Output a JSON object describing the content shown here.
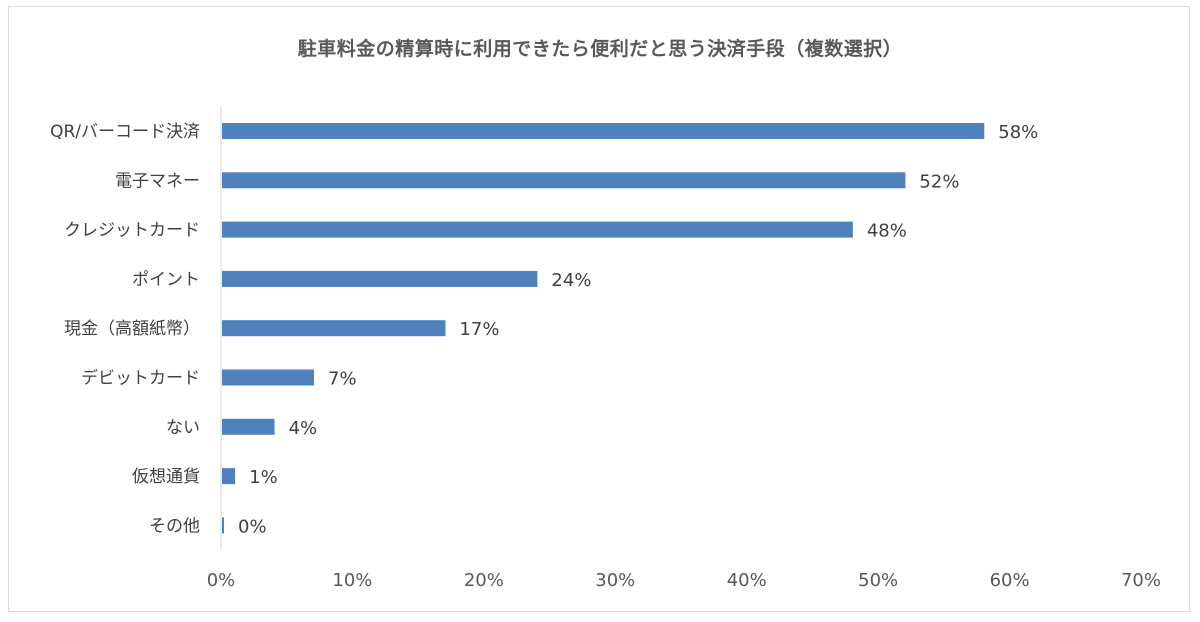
{
  "chart_data": {
    "type": "bar",
    "orientation": "horizontal",
    "title": "駐車料金の精算時に利用できたら便利だと思う決済手段（複数選択）",
    "categories": [
      "QR/バーコード決済",
      "電子マネー",
      "クレジットカード",
      "ポイント",
      "現金（高額紙幣）",
      "デビットカード",
      "ない",
      "仮想通貨",
      "その他"
    ],
    "values": [
      58,
      52,
      48,
      24,
      17,
      7,
      4,
      1,
      0
    ],
    "value_labels": [
      "58%",
      "52%",
      "48%",
      "24%",
      "17%",
      "7%",
      "4%",
      "1%",
      "0%"
    ],
    "xlim": [
      0,
      70
    ],
    "x_ticks": [
      0,
      10,
      20,
      30,
      40,
      50,
      60,
      70
    ],
    "x_tick_labels": [
      "0%",
      "10%",
      "20%",
      "30%",
      "40%",
      "50%",
      "60%",
      "70%"
    ],
    "xlabel": "",
    "ylabel": "",
    "grid": false,
    "legend": "none",
    "bar_color": "#4f81bd",
    "axis_color": "#d9d9d9"
  }
}
